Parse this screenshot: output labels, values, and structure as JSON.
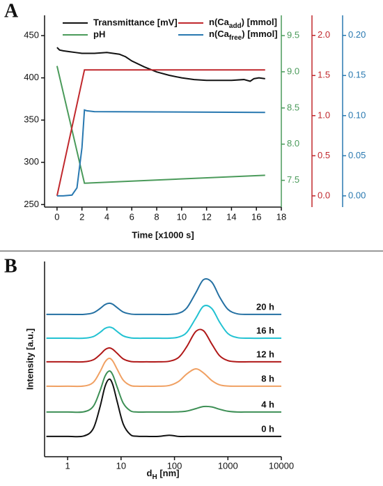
{
  "chart_data": [
    {
      "type": "line",
      "label": "A",
      "x_label": "Time [x1000 s]",
      "xlim": [
        -1,
        18
      ],
      "xticks": [
        0,
        2,
        4,
        6,
        8,
        10,
        12,
        14,
        16,
        18
      ],
      "ylim": [
        247,
        474
      ],
      "yticks": [
        250,
        300,
        350,
        400,
        450
      ],
      "y2lim": [
        7.13,
        9.78
      ],
      "y2ticks": [
        7.5,
        {
          "value": 8,
          "label": "8.0"
        },
        8.5,
        {
          "value": 9,
          "label": "9.0"
        },
        9.5
      ],
      "y3lim": [
        -0.14,
        2.25
      ],
      "y3ticks": [
        {
          "value": 0,
          "label": "0.0"
        },
        0.5,
        {
          "value": 1,
          "label": "1.0"
        },
        1.5,
        {
          "value": 2,
          "label": "2.0"
        }
      ],
      "y4lim": [
        -0.014,
        0.225
      ],
      "y4ticks": [
        {
          "value": 0,
          "label": "0.00"
        },
        0.05,
        {
          "value": 0.1,
          "label": "0.10"
        },
        0.15,
        {
          "value": 0.2,
          "label": "0.20"
        }
      ],
      "series": [
        {
          "name": "Transmittance [mV]",
          "color": "#111111",
          "axis": "y",
          "x": [
            0,
            0.2,
            0.5,
            1,
            1.5,
            2,
            3,
            4,
            5,
            5.5,
            6,
            7,
            8,
            9,
            10,
            11,
            12,
            13,
            14,
            15,
            15.5,
            15.8,
            16.2,
            16.7
          ],
          "values": [
            436,
            433,
            432,
            431,
            430,
            429,
            429,
            430,
            428,
            425,
            420,
            413,
            407,
            403,
            400,
            398,
            397,
            397,
            397,
            398,
            396,
            399,
            400,
            399
          ]
        },
        {
          "name": "pH",
          "color": "#4a9a5a",
          "axis": "y2",
          "x": [
            0,
            2.2,
            16.7
          ],
          "values": [
            9.08,
            7.46,
            7.57
          ]
        },
        {
          "name": "n(Caadd) [mmol]",
          "subscript": "add",
          "color": "#c0282d",
          "axis": "y3",
          "x": [
            0,
            2.2,
            16.7
          ],
          "values": [
            0,
            1.57,
            1.57
          ]
        },
        {
          "name": "n(Cafree) [mmol]",
          "subscript": "free",
          "color": "#2878b0",
          "axis": "y4",
          "x": [
            0,
            0.5,
            1.2,
            1.6,
            2.0,
            2.2,
            2.4,
            3,
            16.7
          ],
          "values": [
            0,
            0,
            0.001,
            0.01,
            0.06,
            0.107,
            0.106,
            0.105,
            0.104
          ]
        }
      ]
    },
    {
      "type": "line",
      "label": "B",
      "x_label": "dH [nm]",
      "x_label_subscript": "H",
      "y_label": "Intensity [a.u.]",
      "log_x": true,
      "smooth": true,
      "xlim": [
        0.37,
        10000
      ],
      "xticks": [
        1,
        10,
        100,
        1000,
        10000
      ],
      "ylim": [
        0,
        100
      ],
      "x": [
        0.4,
        1,
        2,
        3,
        4,
        5,
        6,
        7,
        8.5,
        11,
        15,
        20,
        30,
        50,
        80,
        120,
        170,
        250,
        350,
        500,
        700,
        1000,
        1500,
        2500,
        5000,
        10000
      ],
      "series": [
        {
          "name": "0 h",
          "color": "#111111",
          "values": [
            10.4,
            10.4,
            10.6,
            14.3,
            25.1,
            35.9,
            39.7,
            36.9,
            28.0,
            16.7,
            11.3,
            10.5,
            10.4,
            10.4,
            11.0,
            10.4,
            10.4,
            10.4,
            10.4,
            10.4,
            10.4,
            10.4,
            10.4,
            10.4,
            10.4,
            10.4
          ]
        },
        {
          "name": "4 h",
          "color": "#3d8f55",
          "values": [
            22.9,
            22.9,
            23.0,
            25.7,
            33.5,
            41.2,
            43.9,
            41.9,
            35.5,
            27.4,
            23.5,
            22.9,
            22.9,
            22.9,
            22.9,
            23.0,
            23.4,
            24.6,
            25.7,
            25.5,
            24.3,
            23.3,
            22.9,
            22.9,
            22.9,
            22.9
          ]
        },
        {
          "name": "8 h",
          "color": "#f0a062",
          "values": [
            36.1,
            36.1,
            36.2,
            38.0,
            43.3,
            48.5,
            50.4,
            49.0,
            44.7,
            39.2,
            36.5,
            36.1,
            36.1,
            36.1,
            36.5,
            38.6,
            42.4,
            45.0,
            42.9,
            39.0,
            36.8,
            36.2,
            36.1,
            36.1,
            36.1,
            36.1
          ]
        },
        {
          "name": "12 h",
          "color": "#b01818",
          "values": [
            48.6,
            48.6,
            48.6,
            49.6,
            52.2,
            54.8,
            55.7,
            55.0,
            52.9,
            50.1,
            48.8,
            48.6,
            48.6,
            48.6,
            48.9,
            50.9,
            56.4,
            64.1,
            64.5,
            57.7,
            51.7,
            49.2,
            48.6,
            48.6,
            48.6,
            48.6
          ]
        },
        {
          "name": "16 h",
          "color": "#22c2d2",
          "values": [
            60.7,
            60.7,
            60.7,
            61.5,
            63.6,
            65.7,
            66.4,
            65.9,
            64.1,
            61.9,
            60.9,
            60.7,
            60.7,
            60.7,
            60.7,
            61.3,
            63.7,
            70.9,
            77.1,
            75.9,
            68.9,
            63.1,
            61.0,
            60.7,
            60.7,
            60.7
          ]
        },
        {
          "name": "20 h",
          "color": "#2470a2",
          "values": [
            72.9,
            72.9,
            72.9,
            73.7,
            75.8,
            77.9,
            78.6,
            78.1,
            76.3,
            74.1,
            73.1,
            72.9,
            72.9,
            72.9,
            72.9,
            73.5,
            76.2,
            83.9,
            90.7,
            89.4,
            81.8,
            75.5,
            73.2,
            72.9,
            72.9,
            72.9
          ]
        }
      ]
    }
  ]
}
